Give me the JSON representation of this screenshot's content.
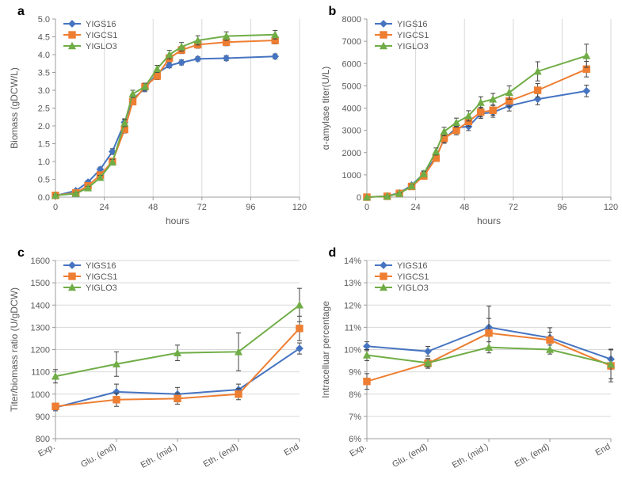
{
  "series_names": [
    "YIGS16",
    "YIGCS1",
    "YIGLO3"
  ],
  "series_colors": [
    "#4674c1",
    "#ee7e32",
    "#70ad47"
  ],
  "series_markers": [
    "diamond",
    "square",
    "triangle"
  ],
  "line_width": 2,
  "marker_size": 4.2,
  "error_cap": 3,
  "background_color": "#ffffff",
  "grid_color": "#d9d9d9",
  "axis_color": "#9c9c9c",
  "tick_font_color": "#595959",
  "tick_fontsize": 11,
  "axis_title_fontsize": 12,
  "panel_label_fontsize": 16,
  "legend_fontsize": 11,
  "panels": {
    "a": {
      "label": "a",
      "type": "line",
      "xlabel": "hours",
      "ylabel": "Biomass (gDCW/L)",
      "xlim": [
        0,
        120
      ],
      "xtick_step": 24,
      "ylim": [
        0,
        5.0
      ],
      "ytick_step": 0.5,
      "xgrid": true,
      "ygrid": false,
      "x_axis_numeric": true,
      "legend_pos": "top-left",
      "x": [
        0,
        10,
        16,
        22,
        28,
        34,
        38,
        44,
        50,
        56,
        62,
        70,
        84,
        108
      ],
      "series": [
        {
          "name": "YIGS16",
          "y": [
            0.04,
            0.18,
            0.42,
            0.78,
            1.28,
            2.1,
            2.75,
            3.05,
            3.48,
            3.7,
            3.78,
            3.88,
            3.9,
            3.95
          ],
          "err": [
            0.02,
            0.03,
            0.05,
            0.06,
            0.08,
            0.1,
            0.08,
            0.09,
            0.08,
            0.07,
            0.07,
            0.06,
            0.07,
            0.07
          ]
        },
        {
          "name": "YIGCS1",
          "y": [
            0.05,
            0.12,
            0.32,
            0.62,
            1.0,
            1.9,
            2.68,
            3.1,
            3.4,
            3.9,
            4.13,
            4.28,
            4.35,
            4.4
          ],
          "err": [
            0.02,
            0.03,
            0.04,
            0.06,
            0.08,
            0.1,
            0.09,
            0.1,
            0.1,
            0.1,
            0.1,
            0.1,
            0.1,
            0.1
          ]
        },
        {
          "name": "YIGLO3",
          "y": [
            0.05,
            0.1,
            0.26,
            0.55,
            0.98,
            2.08,
            2.9,
            3.1,
            3.6,
            4.0,
            4.22,
            4.4,
            4.52,
            4.56
          ],
          "err": [
            0.02,
            0.03,
            0.04,
            0.06,
            0.08,
            0.1,
            0.1,
            0.1,
            0.1,
            0.12,
            0.12,
            0.13,
            0.12,
            0.12
          ]
        }
      ]
    },
    "b": {
      "label": "b",
      "type": "line",
      "xlabel": "hours",
      "ylabel": "α-amylase titer(U/L)",
      "xlim": [
        0,
        120
      ],
      "xtick_step": 24,
      "ylim": [
        0,
        8000
      ],
      "ytick_step": 1000,
      "xgrid": true,
      "ygrid": false,
      "x_axis_numeric": true,
      "legend_pos": "top-left",
      "x": [
        0,
        10,
        16,
        22,
        28,
        34,
        38,
        44,
        50,
        56,
        62,
        70,
        84,
        108
      ],
      "series": [
        {
          "name": "YIGS16",
          "y": [
            0,
            50,
            190,
            540,
            1060,
            1800,
            2600,
            3120,
            3170,
            3750,
            3810,
            4100,
            4400,
            4770
          ],
          "err": [
            0,
            20,
            40,
            70,
            120,
            150,
            180,
            180,
            180,
            210,
            220,
            230,
            250,
            260
          ]
        },
        {
          "name": "YIGCS1",
          "y": [
            0,
            40,
            170,
            480,
            950,
            1750,
            2640,
            3000,
            3400,
            3820,
            3900,
            4320,
            4800,
            5750
          ],
          "err": [
            0,
            20,
            30,
            60,
            110,
            150,
            180,
            200,
            220,
            220,
            220,
            260,
            300,
            350
          ]
        },
        {
          "name": "YIGLO3",
          "y": [
            0,
            40,
            160,
            500,
            1050,
            2050,
            2950,
            3350,
            3650,
            4250,
            4400,
            4700,
            5650,
            6350
          ],
          "err": [
            0,
            20,
            30,
            60,
            110,
            160,
            190,
            200,
            230,
            260,
            260,
            300,
            430,
            520
          ]
        }
      ]
    },
    "c": {
      "label": "c",
      "type": "line",
      "xlabel": "",
      "ylabel": "Titer/biomass ratio (U/gDCW)",
      "x_categories": [
        "Exp.",
        "Glu. (end)",
        "Eth. (mid.)",
        "Eth. (end)",
        "End"
      ],
      "ylim": [
        800,
        1600
      ],
      "ytick_step": 100,
      "xgrid": false,
      "ygrid": true,
      "x_axis_numeric": false,
      "legend_pos": "top-left",
      "series": [
        {
          "name": "YIGS16",
          "y": [
            940,
            1010,
            1000,
            1020,
            1205
          ],
          "err": [
            15,
            35,
            30,
            25,
            25
          ]
        },
        {
          "name": "YIGCS1",
          "y": [
            945,
            975,
            980,
            1000,
            1295
          ],
          "err": [
            15,
            30,
            25,
            25,
            55
          ]
        },
        {
          "name": "YIGLO3",
          "y": [
            1080,
            1135,
            1185,
            1190,
            1400
          ],
          "err": [
            30,
            55,
            35,
            85,
            75
          ]
        }
      ]
    },
    "d": {
      "label": "d",
      "type": "line",
      "xlabel": "",
      "ylabel": "Intracelluar percentage",
      "x_categories": [
        "Exp.",
        "Glu. (end)",
        "Eth. (mid.)",
        "Eth. (end)",
        "End"
      ],
      "ylim": [
        0.06,
        0.14
      ],
      "ytick_step": 0.01,
      "y_percent": true,
      "xgrid": false,
      "ygrid": true,
      "x_axis_numeric": false,
      "legend_pos": "top-left",
      "series": [
        {
          "name": "YIGS16",
          "y": [
            0.1015,
            0.0992,
            0.11,
            0.1053,
            0.0957
          ],
          "err": [
            0.002,
            0.0022,
            0.0095,
            0.0025,
            0.0045
          ]
        },
        {
          "name": "YIGCS1",
          "y": [
            0.0857,
            0.0938,
            0.1074,
            0.1043,
            0.0927
          ],
          "err": [
            0.0035,
            0.0022,
            0.0066,
            0.0055,
            0.0072
          ]
        },
        {
          "name": "YIGLO3",
          "y": [
            0.0975,
            0.094,
            0.101,
            0.1,
            0.0934
          ],
          "err": [
            0.0025,
            0.0018,
            0.0025,
            0.002,
            0.0065
          ]
        }
      ]
    }
  }
}
